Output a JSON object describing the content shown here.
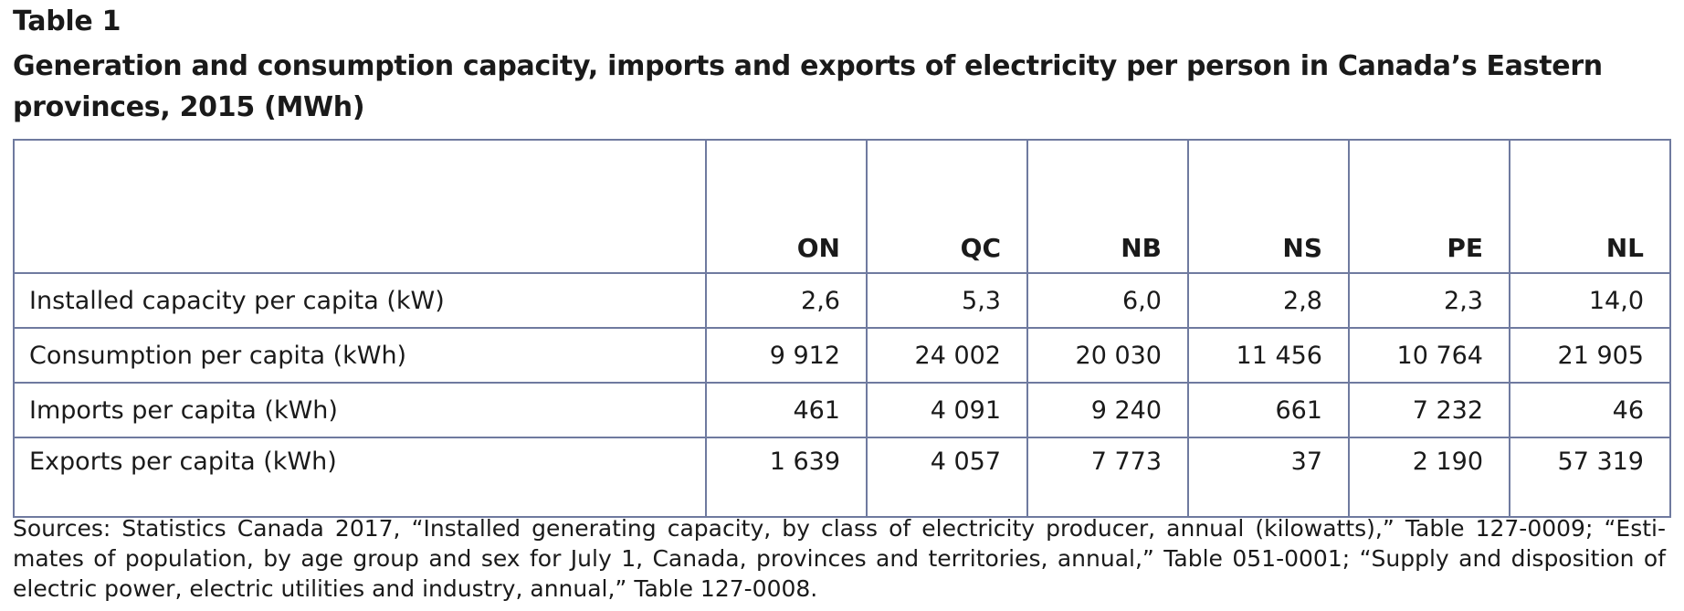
{
  "table_label": "Table 1",
  "title": "Generation and consumption capacity, imports and exports of electricity per person in Canada’s Eastern provinces, 2015 (MWh)",
  "columns": [
    "",
    "ON",
    "QC",
    "NB",
    "NS",
    "PE",
    "NL"
  ],
  "rows": [
    {
      "label": "Installed capacity per capita (kW)",
      "values": [
        "2,6",
        "5,3",
        "6,0",
        "2,8",
        "2,3",
        "14,0"
      ]
    },
    {
      "label": "Consumption per capita (kWh)",
      "values": [
        "9 912",
        "24 002",
        "20 030",
        "11 456",
        "10 764",
        "21 905"
      ]
    },
    {
      "label": "Imports per capita (kWh)",
      "values": [
        "461",
        "4 091",
        "9 240",
        "661",
        "7 232",
        "46"
      ]
    },
    {
      "label": "Exports per capita (kWh)",
      "values": [
        "1 639",
        "4 057",
        "7 773",
        "37",
        "2 190",
        "57 319"
      ]
    }
  ],
  "sources": "Sources: Statistics Canada 2017, “Installed generating capacity, by class of electricity producer, annual (kilowatts),” Table 127-0009; “Esti­mates of population, by age group and sex for July 1, Canada, provinces and territories, annual,” Table 051-0001; “Supply and disposition of electric power, electric utilities and industry, annual,” Table 127-0008.",
  "colors": {
    "border": "#6f7a9f",
    "text": "#1a1a1a"
  }
}
